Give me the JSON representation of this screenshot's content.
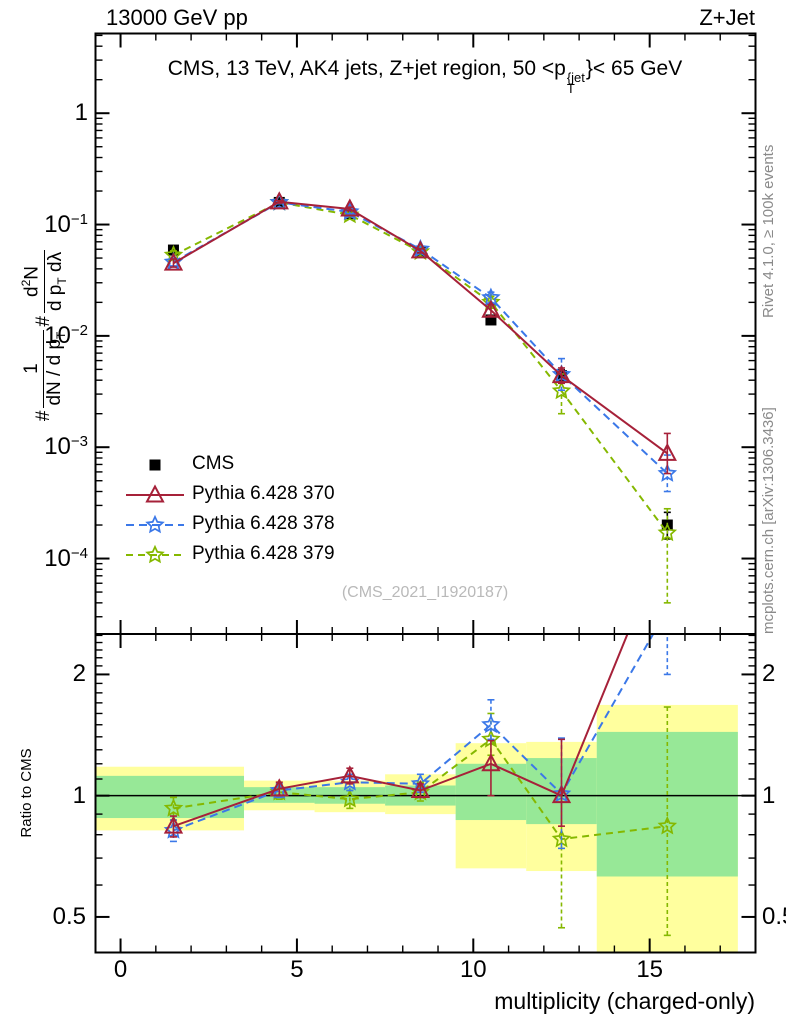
{
  "header": {
    "left": "13000 GeV pp",
    "right": "Z+Jet"
  },
  "title": {
    "prefix": "CMS, 13 TeV, AK4 jets, Z+jet region, 50 <p",
    "sup": "{jet",
    "sub": "T",
    "suffix": "}< 65 GeV"
  },
  "watermark": "(CMS_2021_I1920187)",
  "side_labels": {
    "top": "Rivet 4.1.0, ≥ 100k events",
    "bottom": "mcplots.cern.ch [arXiv:1306.3436]"
  },
  "ylabel_main": {
    "hash1": "#",
    "num1": "1",
    "den1a": "dN / d p",
    "den1sub": "T",
    "hash2": "#",
    "num2a": "d",
    "num2sup": "2",
    "num2b": "N",
    "den2a": "d p",
    "den2sub": "T",
    "den2b": " dλ"
  },
  "ratio_ylabel": "Ratio to CMS",
  "xlabel": "multiplicity (charged-only)",
  "colors": {
    "cms": "#000000",
    "p370": "#a62139",
    "p378": "#3b78e8",
    "p379": "#85b800",
    "band_yellow": "#ffff9e",
    "band_green": "#97e897",
    "frame": "#000000",
    "gray_text": "#8a8a8a",
    "watermark": "#b9b9b9"
  },
  "chart_data": {
    "type": "line",
    "title": "CMS, 13 TeV, AK4 jets, Z+jet region, 50 < pT{jet} < 65 GeV",
    "xlabel": "multiplicity (charged-only)",
    "ylabel": "# 1/(dN/dpT) # d2N/(dpT dλ)",
    "ratio_label": "Ratio to CMS",
    "x_range": [
      -0.71,
      18.0
    ],
    "y_range_main": [
      2.1e-05,
      5.2
    ],
    "y_scale_main": "log",
    "y_range_ratio": [
      0.408,
      2.52
    ],
    "y_scale_ratio": "log",
    "grid": false,
    "legend_position": "middle-left",
    "x": [
      1.5,
      4.5,
      6.5,
      8.5,
      10.5,
      12.5,
      15.5
    ],
    "x_ticks": [
      {
        "label": "0",
        "value": 0
      },
      {
        "label": "5",
        "value": 5
      },
      {
        "label": "10",
        "value": 10
      },
      {
        "label": "15",
        "value": 15
      }
    ],
    "y_ticks_main": [
      {
        "base": "1",
        "exp": "",
        "value": 1
      },
      {
        "base": "10",
        "exp": "−1",
        "value": 0.1
      },
      {
        "base": "10",
        "exp": "−2",
        "value": 0.01
      },
      {
        "base": "10",
        "exp": "−3",
        "value": 0.001
      },
      {
        "base": "10",
        "exp": "−4",
        "value": 0.0001
      }
    ],
    "ratio_ticks": [
      {
        "label": "2",
        "value": 2
      },
      {
        "label": "1",
        "value": 1
      },
      {
        "label": "0.5",
        "value": 0.5
      }
    ],
    "series": [
      {
        "name": "CMS",
        "marker": "square",
        "color": "#000000",
        "line": false,
        "dash": "",
        "y": [
          0.059,
          0.158,
          0.125,
          0.056,
          0.0139,
          0.0044,
          0.0002
        ],
        "err_lo": [
          0.0545,
          0.151,
          0.119,
          0.0525,
          0.0127,
          0.00385,
          0.00015
        ],
        "err_hi": [
          0.064,
          0.1655,
          0.131,
          0.0595,
          0.0152,
          0.00495,
          0.00026
        ]
      },
      {
        "name": "Pythia 6.428 370",
        "marker": "triangle",
        "color": "#a62139",
        "line": true,
        "dash": "",
        "y": [
          0.045,
          0.16,
          0.138,
          0.058,
          0.017,
          0.0044,
          0.00088
        ],
        "err_lo": [
          0.0415,
          0.156,
          0.133,
          0.0555,
          0.0151,
          0.00375,
          0.00058
        ],
        "err_hi": [
          0.049,
          0.164,
          0.143,
          0.0605,
          0.0191,
          0.00515,
          0.00133
        ],
        "ratio": [
          0.84,
          1.04,
          1.12,
          1.03,
          1.2,
          1.0,
          4.4
        ],
        "ratio_err_lo": [
          0.79,
          1.0,
          1.07,
          0.99,
          1.0,
          0.84,
          3.0
        ],
        "ratio_err_hi": [
          0.89,
          1.08,
          1.17,
          1.07,
          1.37,
          1.38,
          6.0
        ]
      },
      {
        "name": "Pythia 6.428 378",
        "marker": "star",
        "color": "#3b78e8",
        "line": true,
        "dash": "8 5",
        "y": [
          0.046,
          0.158,
          0.13,
          0.06,
          0.022,
          0.0045,
          0.00058
        ],
        "err_lo": [
          0.0425,
          0.154,
          0.125,
          0.0575,
          0.0196,
          0.00325,
          0.0004
        ],
        "err_hi": [
          0.05,
          0.162,
          0.135,
          0.0635,
          0.0247,
          0.00625,
          0.00085
        ],
        "ratio": [
          0.82,
          1.03,
          1.08,
          1.07,
          1.5,
          1.01,
          2.9
        ],
        "ratio_err_lo": [
          0.77,
          0.99,
          1.03,
          1.02,
          1.38,
          0.74,
          2.0
        ],
        "ratio_err_hi": [
          0.87,
          1.07,
          1.13,
          1.13,
          1.73,
          1.39,
          4.0
        ]
      },
      {
        "name": "Pythia 6.428 379",
        "marker": "star",
        "color": "#85b800",
        "line": true,
        "dash": "7 5",
        "y": [
          0.053,
          0.158,
          0.122,
          0.057,
          0.02,
          0.0032,
          0.00017
        ],
        "err_lo": [
          0.0485,
          0.154,
          0.117,
          0.0545,
          0.0177,
          0.002,
          4e-05
        ],
        "err_hi": [
          0.058,
          0.162,
          0.127,
          0.06,
          0.0226,
          0.00455,
          0.00028
        ],
        "ratio": [
          0.93,
          1.02,
          0.98,
          1.02,
          1.38,
          0.78,
          0.84
        ],
        "ratio_err_lo": [
          0.87,
          0.98,
          0.93,
          0.97,
          1.26,
          0.47,
          0.45
        ],
        "ratio_err_hi": [
          0.99,
          1.06,
          1.03,
          1.08,
          1.6,
          1.03,
          1.66
        ]
      }
    ],
    "bands": {
      "yellow": [
        [
          -0.71,
          3.5,
          0.82,
          1.18
        ],
        [
          3.5,
          5.5,
          0.92,
          1.09
        ],
        [
          5.5,
          7.5,
          0.91,
          1.09
        ],
        [
          7.5,
          9.5,
          0.9,
          1.13
        ],
        [
          9.5,
          11.5,
          0.66,
          1.35
        ],
        [
          11.5,
          13.5,
          0.65,
          1.36
        ],
        [
          13.5,
          17.5,
          0.41,
          1.68
        ]
      ],
      "green": [
        [
          -0.71,
          3.5,
          0.88,
          1.12
        ],
        [
          3.5,
          5.5,
          0.96,
          1.05
        ],
        [
          5.5,
          7.5,
          0.955,
          1.05
        ],
        [
          7.5,
          9.5,
          0.945,
          1.06
        ],
        [
          9.5,
          11.5,
          0.87,
          1.2
        ],
        [
          11.5,
          13.5,
          0.85,
          1.24
        ],
        [
          13.5,
          17.5,
          0.63,
          1.44
        ]
      ]
    },
    "legend": [
      {
        "label": "CMS",
        "marker": "square",
        "color": "#000000",
        "line": false,
        "dash": ""
      },
      {
        "label": "Pythia 6.428 370",
        "marker": "triangle",
        "color": "#a62139",
        "line": true,
        "dash": ""
      },
      {
        "label": "Pythia 6.428 378",
        "marker": "star",
        "color": "#3b78e8",
        "line": true,
        "dash": "8 5"
      },
      {
        "label": "Pythia 6.428 379",
        "marker": "star",
        "color": "#85b800",
        "line": true,
        "dash": "7 5"
      }
    ]
  }
}
